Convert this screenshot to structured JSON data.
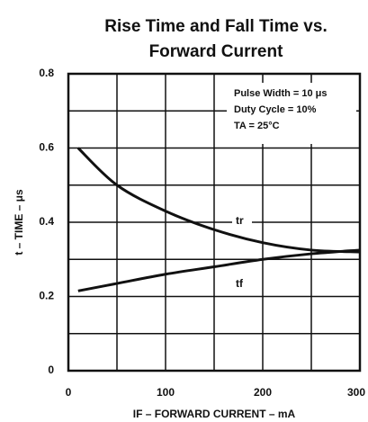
{
  "chart_data": {
    "type": "line",
    "title": [
      "Rise Time and Fall Time vs.",
      "Forward Current"
    ],
    "xlabel": "IF – FORWARD CURRENT – mA",
    "ylabel": "t – TIME – μs",
    "annotations": [
      "Pulse Width = 10 μs",
      "Duty Cycle = 10%",
      "TA = 25°C"
    ],
    "x": [
      10,
      50,
      100,
      150,
      200,
      250,
      300
    ],
    "series": [
      {
        "name": "tr",
        "color": "#111111",
        "values": [
          0.6,
          0.5,
          0.43,
          0.38,
          0.345,
          0.325,
          0.32
        ]
      },
      {
        "name": "tf",
        "color": "#111111",
        "values": [
          0.215,
          0.235,
          0.26,
          0.28,
          0.3,
          0.315,
          0.325
        ]
      }
    ],
    "xlim": [
      0,
      300
    ],
    "xticks": [
      0,
      100,
      200,
      300
    ],
    "ylim": [
      0,
      0.8
    ],
    "yticks": [
      0,
      0.2,
      0.4,
      0.6,
      0.8
    ],
    "xgrid": [
      0,
      50,
      100,
      150,
      200,
      250,
      300
    ],
    "ygrid": [
      0,
      0.1,
      0.2,
      0.3,
      0.4,
      0.5,
      0.6,
      0.7,
      0.8
    ],
    "grid": true
  }
}
